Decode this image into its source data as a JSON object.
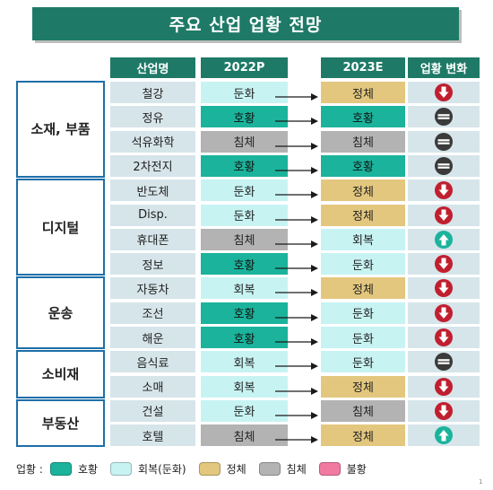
{
  "title": "주요 산업 업황 전망",
  "colors": {
    "header": "#1e7a67",
    "group_border": "#1e6fa8",
    "name_bg": "#d6e5ea",
    "good": "#1bb39c",
    "recovery": "#c8f3f3",
    "stagnant": "#e3c77e",
    "sluggish": "#b3b3b3",
    "bad": "#f07aa0",
    "arrow_down": "#c01f2f",
    "arrow_up": "#1bb39c",
    "neutral": "#3a3a3a"
  },
  "chart_data": {
    "type": "table",
    "title": "주요 산업 업황 전망",
    "columns": [
      "산업명",
      "2022P",
      "2023E",
      "업황 변화"
    ],
    "groups": [
      {
        "name": "소재, 부품",
        "rows": [
          0,
          1,
          2,
          3
        ]
      },
      {
        "name": "디지털",
        "rows": [
          4,
          5,
          6,
          7
        ]
      },
      {
        "name": "운송",
        "rows": [
          8,
          9,
          10
        ]
      },
      {
        "name": "소비재",
        "rows": [
          11,
          12
        ]
      },
      {
        "name": "부동산",
        "rows": [
          13,
          14
        ]
      }
    ],
    "rows": [
      {
        "industry": "철강",
        "p2022": "둔화",
        "e2023": "정체",
        "change": "down"
      },
      {
        "industry": "정유",
        "p2022": "호황",
        "e2023": "호황",
        "change": "same"
      },
      {
        "industry": "석유화학",
        "p2022": "침체",
        "e2023": "침체",
        "change": "same"
      },
      {
        "industry": "2차전지",
        "p2022": "호황",
        "e2023": "호황",
        "change": "same"
      },
      {
        "industry": "반도체",
        "p2022": "둔화",
        "e2023": "정체",
        "change": "down"
      },
      {
        "industry": "Disp.",
        "p2022": "둔화",
        "e2023": "정체",
        "change": "down"
      },
      {
        "industry": "휴대폰",
        "p2022": "침체",
        "e2023": "회복",
        "change": "up"
      },
      {
        "industry": "정보",
        "p2022": "호황",
        "e2023": "둔화",
        "change": "down"
      },
      {
        "industry": "자동차",
        "p2022": "회복",
        "e2023": "정체",
        "change": "down"
      },
      {
        "industry": "조선",
        "p2022": "호황",
        "e2023": "둔화",
        "change": "down"
      },
      {
        "industry": "해운",
        "p2022": "호황",
        "e2023": "둔화",
        "change": "down"
      },
      {
        "industry": "음식료",
        "p2022": "회복",
        "e2023": "둔화",
        "change": "same"
      },
      {
        "industry": "소매",
        "p2022": "회복",
        "e2023": "정체",
        "change": "down"
      },
      {
        "industry": "건설",
        "p2022": "둔화",
        "e2023": "침체",
        "change": "down"
      },
      {
        "industry": "호텔",
        "p2022": "침체",
        "e2023": "정체",
        "change": "up"
      }
    ],
    "legend": {
      "title": "업황 :",
      "items": [
        {
          "label": "호황",
          "color": "#1bb39c"
        },
        {
          "label": "회복(둔화)",
          "color": "#c8f3f3"
        },
        {
          "label": "정체",
          "color": "#e3c77e"
        },
        {
          "label": "침체",
          "color": "#b3b3b3"
        },
        {
          "label": "불황",
          "color": "#f07aa0"
        }
      ]
    }
  },
  "footnote": "1"
}
